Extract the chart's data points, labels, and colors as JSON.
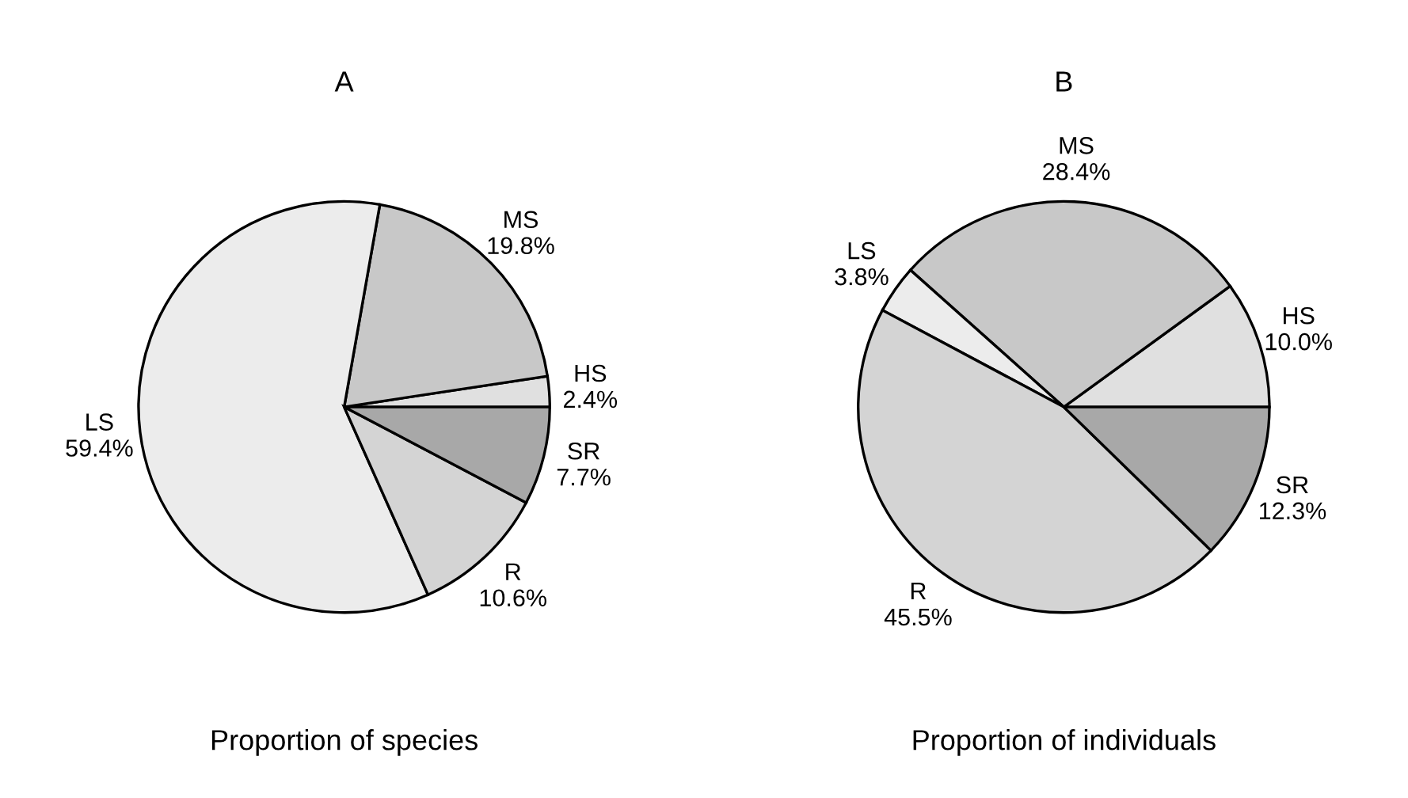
{
  "chart_data": [
    {
      "type": "pie",
      "title": "A",
      "xlabel": "Proportion of species",
      "categories": [
        "HS",
        "MS",
        "LS",
        "R",
        "SR"
      ],
      "values": [
        2.4,
        19.8,
        59.4,
        10.6,
        7.7
      ],
      "value_labels": [
        "2.4%",
        "19.8%",
        "59.4%",
        "10.6%",
        "7.7%"
      ],
      "colors": [
        "#e0e0e0",
        "#c8c8c8",
        "#ececec",
        "#d4d4d4",
        "#a8a8a8"
      ],
      "legend": false
    },
    {
      "type": "pie",
      "title": "B",
      "xlabel": "Proportion of individuals",
      "categories": [
        "HS",
        "MS",
        "LS",
        "R",
        "SR"
      ],
      "values": [
        10.0,
        28.4,
        3.8,
        45.5,
        12.3
      ],
      "value_labels": [
        "10.0%",
        "28.4%",
        "3.8%",
        "45.5%",
        "12.3%"
      ],
      "colors": [
        "#e0e0e0",
        "#c8c8c8",
        "#ececec",
        "#d4d4d4",
        "#a8a8a8"
      ],
      "legend": false
    }
  ]
}
